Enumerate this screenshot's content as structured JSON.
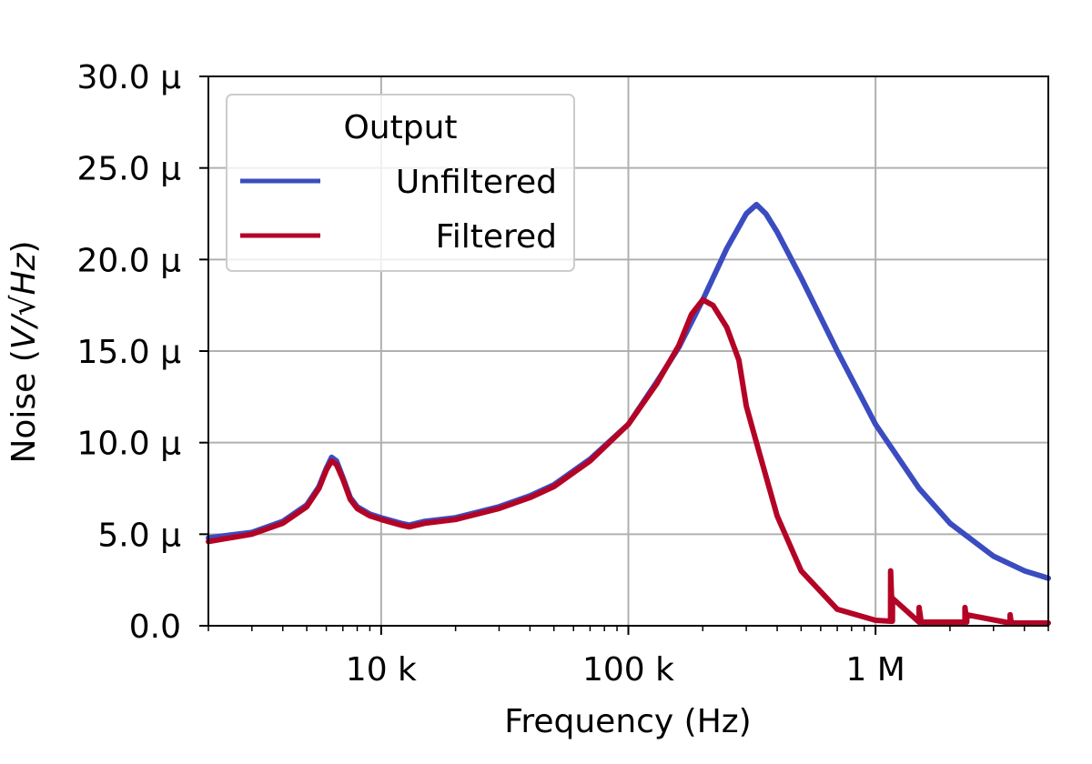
{
  "chart_data": {
    "type": "line",
    "xscale": "log",
    "xlim": [
      2000,
      5000000
    ],
    "ylim": [
      0,
      3e-05
    ],
    "grid": true,
    "xlabel": "Frequency (Hz)",
    "ylabel_prefix": "Noise (",
    "ylabel_math": "V/√Hz",
    "ylabel_suffix": ")",
    "xticks": [
      {
        "value": 10000,
        "label": "10 k"
      },
      {
        "value": 100000,
        "label": "100 k"
      },
      {
        "value": 1000000,
        "label": "1 M"
      }
    ],
    "yticks": [
      {
        "value": 0,
        "label": "0.0"
      },
      {
        "value": 5e-06,
        "label": "5.0 μ"
      },
      {
        "value": 1e-05,
        "label": "10.0 μ"
      },
      {
        "value": 1.5e-05,
        "label": "15.0 μ"
      },
      {
        "value": 2e-05,
        "label": "20.0 μ"
      },
      {
        "value": 2.5e-05,
        "label": "25.0 μ"
      },
      {
        "value": 3e-05,
        "label": "30.0 μ"
      }
    ],
    "legend": {
      "title": "Output",
      "placement": "upper-left"
    },
    "series": [
      {
        "name": "Unfiltered",
        "color": "#3b4cc0",
        "x": [
          2000,
          3000,
          4000,
          5000,
          5600,
          6000,
          6300,
          6600,
          7000,
          7500,
          8000,
          9000,
          10000,
          12000,
          13000,
          15000,
          20000,
          30000,
          40000,
          50000,
          70000,
          100000,
          130000,
          160000,
          200000,
          250000,
          300000,
          330000,
          360000,
          400000,
          500000,
          700000,
          1000000,
          1500000,
          2000000,
          3000000,
          4000000,
          5000000
        ],
        "y": [
          4.8e-06,
          5.1e-06,
          5.7e-06,
          6.6e-06,
          7.6e-06,
          8.6e-06,
          9.2e-06,
          9e-06,
          8.1e-06,
          7e-06,
          6.5e-06,
          6.1e-06,
          5.9e-06,
          5.6e-06,
          5.5e-06,
          5.7e-06,
          5.9e-06,
          6.5e-06,
          7.1e-06,
          7.7e-06,
          9.1e-06,
          1.1e-05,
          1.33e-05,
          1.52e-05,
          1.78e-05,
          2.06e-05,
          2.25e-05,
          2.3e-05,
          2.25e-05,
          2.15e-05,
          1.9e-05,
          1.5e-05,
          1.1e-05,
          7.5e-06,
          5.6e-06,
          3.8e-06,
          3e-06,
          2.6e-06
        ]
      },
      {
        "name": "Filtered",
        "color": "#b40426",
        "x": [
          2000,
          3000,
          4000,
          5000,
          5600,
          6000,
          6300,
          6600,
          7000,
          7500,
          8000,
          9000,
          10000,
          12000,
          13000,
          15000,
          20000,
          30000,
          40000,
          50000,
          70000,
          100000,
          130000,
          160000,
          180000,
          200000,
          220000,
          250000,
          280000,
          300000,
          330000,
          400000,
          500000,
          700000,
          1000000,
          1150000,
          1151000,
          1170000,
          1171000,
          1500000,
          1501000,
          1530000,
          1531000,
          2000000,
          2300000,
          2301000,
          2340000,
          2341000,
          3500000,
          3501000,
          3540000,
          3541000,
          5000000
        ],
        "y": [
          4.6e-06,
          5e-06,
          5.6e-06,
          6.5e-06,
          7.5e-06,
          8.5e-06,
          9e-06,
          8.8e-06,
          8e-06,
          6.9e-06,
          6.4e-06,
          6e-06,
          5.8e-06,
          5.5e-06,
          5.4e-06,
          5.6e-06,
          5.8e-06,
          6.4e-06,
          7e-06,
          7.6e-06,
          9e-06,
          1.1e-05,
          1.32e-05,
          1.53e-05,
          1.7e-05,
          1.78e-05,
          1.75e-05,
          1.63e-05,
          1.45e-05,
          1.2e-05,
          1e-05,
          6e-06,
          3e-06,
          9e-07,
          3e-07,
          2.5e-07,
          3e-06,
          2.5e-07,
          1.5e-06,
          2e-07,
          1e-06,
          2e-07,
          2e-07,
          2e-07,
          2e-07,
          1e-06,
          2e-07,
          6e-07,
          1.5e-07,
          6e-07,
          1.5e-07,
          1.5e-07,
          1.5e-07
        ]
      }
    ]
  }
}
